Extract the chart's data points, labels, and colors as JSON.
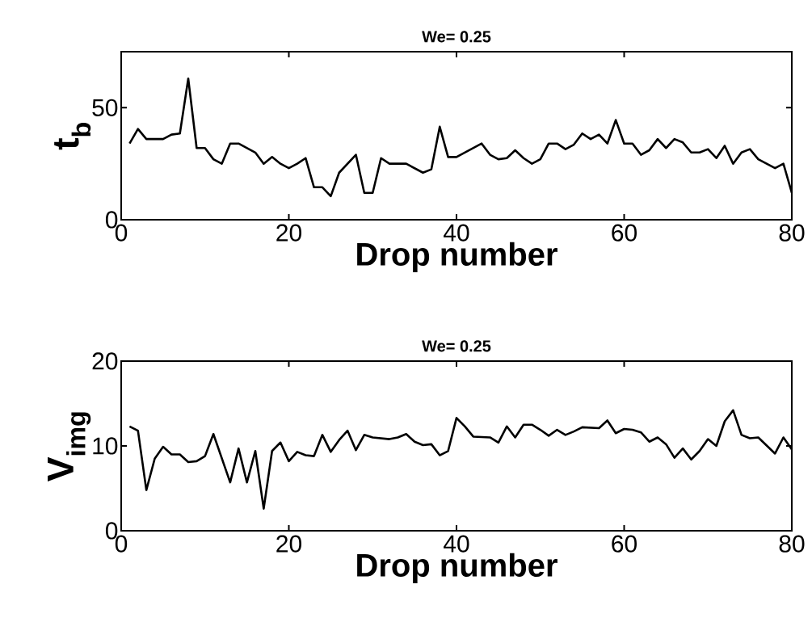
{
  "chart_data": [
    {
      "type": "line",
      "title": "We= 0.25",
      "xlabel": "Drop number",
      "ylabel": "t$_{b}$",
      "color": "#000000",
      "xlim": [
        0,
        80
      ],
      "ylim": [
        0,
        75
      ],
      "xticks": [
        0,
        20,
        40,
        60,
        80
      ],
      "yticks": [
        0,
        50
      ],
      "x": [
        1,
        2,
        3,
        5,
        6,
        7,
        8,
        9,
        10,
        11,
        12,
        13,
        14,
        15,
        16,
        17,
        18,
        19,
        20,
        21,
        22,
        23,
        24,
        25,
        26,
        27,
        28,
        29,
        30,
        31,
        32,
        34,
        36,
        37,
        38,
        39,
        40,
        43,
        44,
        45,
        46,
        47,
        48,
        49,
        50,
        51,
        52,
        53,
        54,
        55,
        56,
        57,
        58,
        59,
        60,
        61,
        62,
        63,
        64,
        65,
        66,
        67,
        68,
        69,
        70,
        71,
        72,
        73,
        74,
        75,
        76,
        78,
        79,
        80
      ],
      "values": [
        34,
        40.5,
        36,
        36,
        38,
        38.5,
        63,
        32,
        32,
        27,
        25,
        34,
        34,
        32,
        30,
        25,
        28,
        25,
        23,
        25,
        27.5,
        14.5,
        14.5,
        10.5,
        21,
        25,
        29,
        12,
        12,
        27.5,
        25,
        25,
        21,
        22.5,
        41.5,
        28,
        28,
        34,
        29,
        27,
        27.5,
        31,
        27.5,
        25,
        27,
        34,
        34,
        31.5,
        33.5,
        38.5,
        36,
        38,
        34,
        44.5,
        34,
        34,
        29,
        31,
        36,
        32,
        36,
        34.5,
        30,
        30,
        31.5,
        27.5,
        33,
        25,
        30,
        31.5,
        27,
        23,
        25,
        12
      ]
    },
    {
      "type": "line",
      "title": "We= 0.25",
      "xlabel": "Drop number",
      "ylabel": "V$_{img}$",
      "color": "#000000",
      "xlim": [
        0,
        80
      ],
      "ylim": [
        0,
        20
      ],
      "xticks": [
        0,
        20,
        40,
        60,
        80
      ],
      "yticks": [
        0,
        10,
        20
      ],
      "x": [
        1,
        2,
        3,
        4,
        5,
        6,
        7,
        8,
        9,
        10,
        11,
        13,
        14,
        15,
        16,
        17,
        18,
        19,
        20,
        21,
        22,
        23,
        24,
        25,
        26,
        27,
        28,
        29,
        30,
        32,
        33,
        34,
        35,
        36,
        37,
        38,
        39,
        40,
        41,
        42,
        44,
        45,
        46,
        47,
        48,
        49,
        50,
        51,
        52,
        53,
        54,
        55,
        57,
        58,
        59,
        60,
        61,
        62,
        63,
        64,
        65,
        66,
        67,
        68,
        69,
        70,
        71,
        72,
        73,
        74,
        75,
        76,
        78,
        79,
        80
      ],
      "values": [
        12.3,
        11.8,
        4.8,
        8.5,
        9.9,
        9,
        9,
        8.1,
        8.2,
        8.8,
        11.4,
        5.7,
        9.7,
        5.7,
        9.4,
        2.6,
        9.4,
        10.4,
        8.2,
        9.3,
        8.9,
        8.8,
        11.3,
        9.3,
        10.7,
        11.8,
        9.5,
        11.3,
        11,
        10.8,
        11,
        11.4,
        10.5,
        10.1,
        10.2,
        8.9,
        9.4,
        13.3,
        12.3,
        11.1,
        11,
        10.4,
        12.3,
        11,
        12.5,
        12.5,
        11.9,
        11.2,
        11.9,
        11.3,
        11.7,
        12.2,
        12.1,
        13,
        11.5,
        12,
        11.9,
        11.6,
        10.5,
        11,
        10.2,
        8.6,
        9.7,
        8.4,
        9.4,
        10.8,
        10,
        12.9,
        14.2,
        11.3,
        10.9,
        11,
        9.1,
        11,
        9.6
      ]
    }
  ]
}
